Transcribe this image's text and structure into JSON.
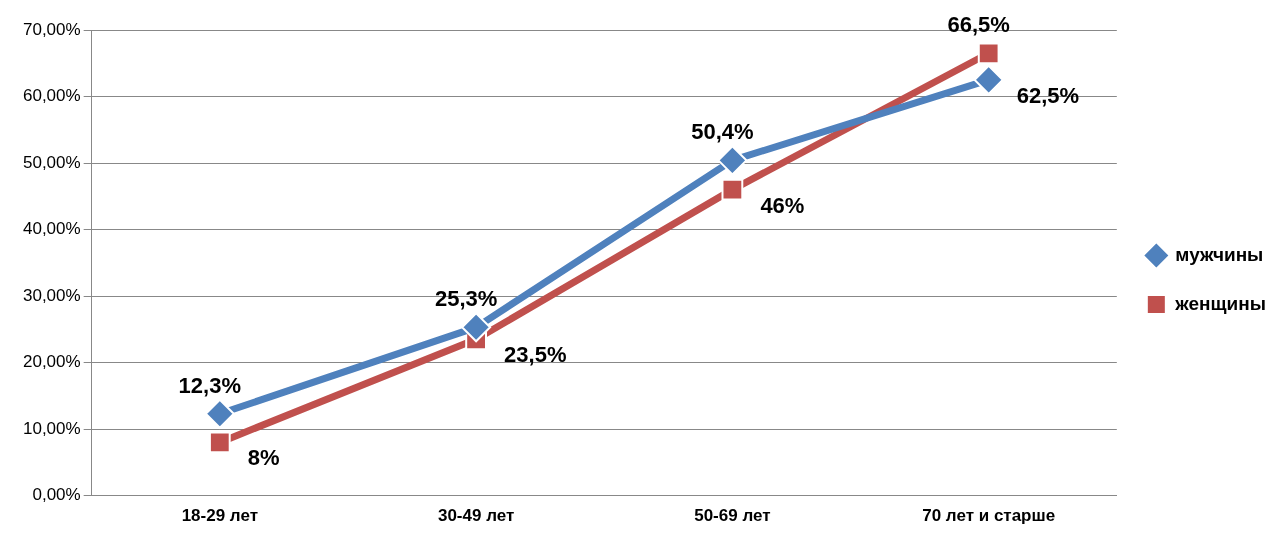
{
  "chart_data": {
    "type": "line",
    "categories": [
      "18-29 лет",
      "30-49 лет",
      "50-69 лет",
      "70 лет и старше"
    ],
    "series": [
      {
        "name": "мужчины",
        "color": "#4f81bd",
        "marker": "diamond",
        "values": [
          12.3,
          25.3,
          50.4,
          62.5
        ],
        "value_labels": [
          "12,3%",
          "25,3%",
          "50,4%",
          "62,5%"
        ]
      },
      {
        "name": "женщины",
        "color": "#c0504d",
        "marker": "square",
        "values": [
          8,
          23.5,
          46,
          66.5
        ],
        "value_labels": [
          "8%",
          "23,5%",
          "46%",
          "66,5%"
        ]
      }
    ],
    "ylim": [
      0,
      70
    ],
    "yticks": [
      {
        "value": 0,
        "label": "0,00%"
      },
      {
        "value": 10,
        "label": "10,00%"
      },
      {
        "value": 20,
        "label": "20,00%"
      },
      {
        "value": 30,
        "label": "30,00%"
      },
      {
        "value": 40,
        "label": "40,00%"
      },
      {
        "value": 50,
        "label": "50,00%"
      },
      {
        "value": 60,
        "label": "60,00%"
      },
      {
        "value": 70,
        "label": "70,00%"
      }
    ],
    "grid": "y",
    "legend": "right"
  }
}
